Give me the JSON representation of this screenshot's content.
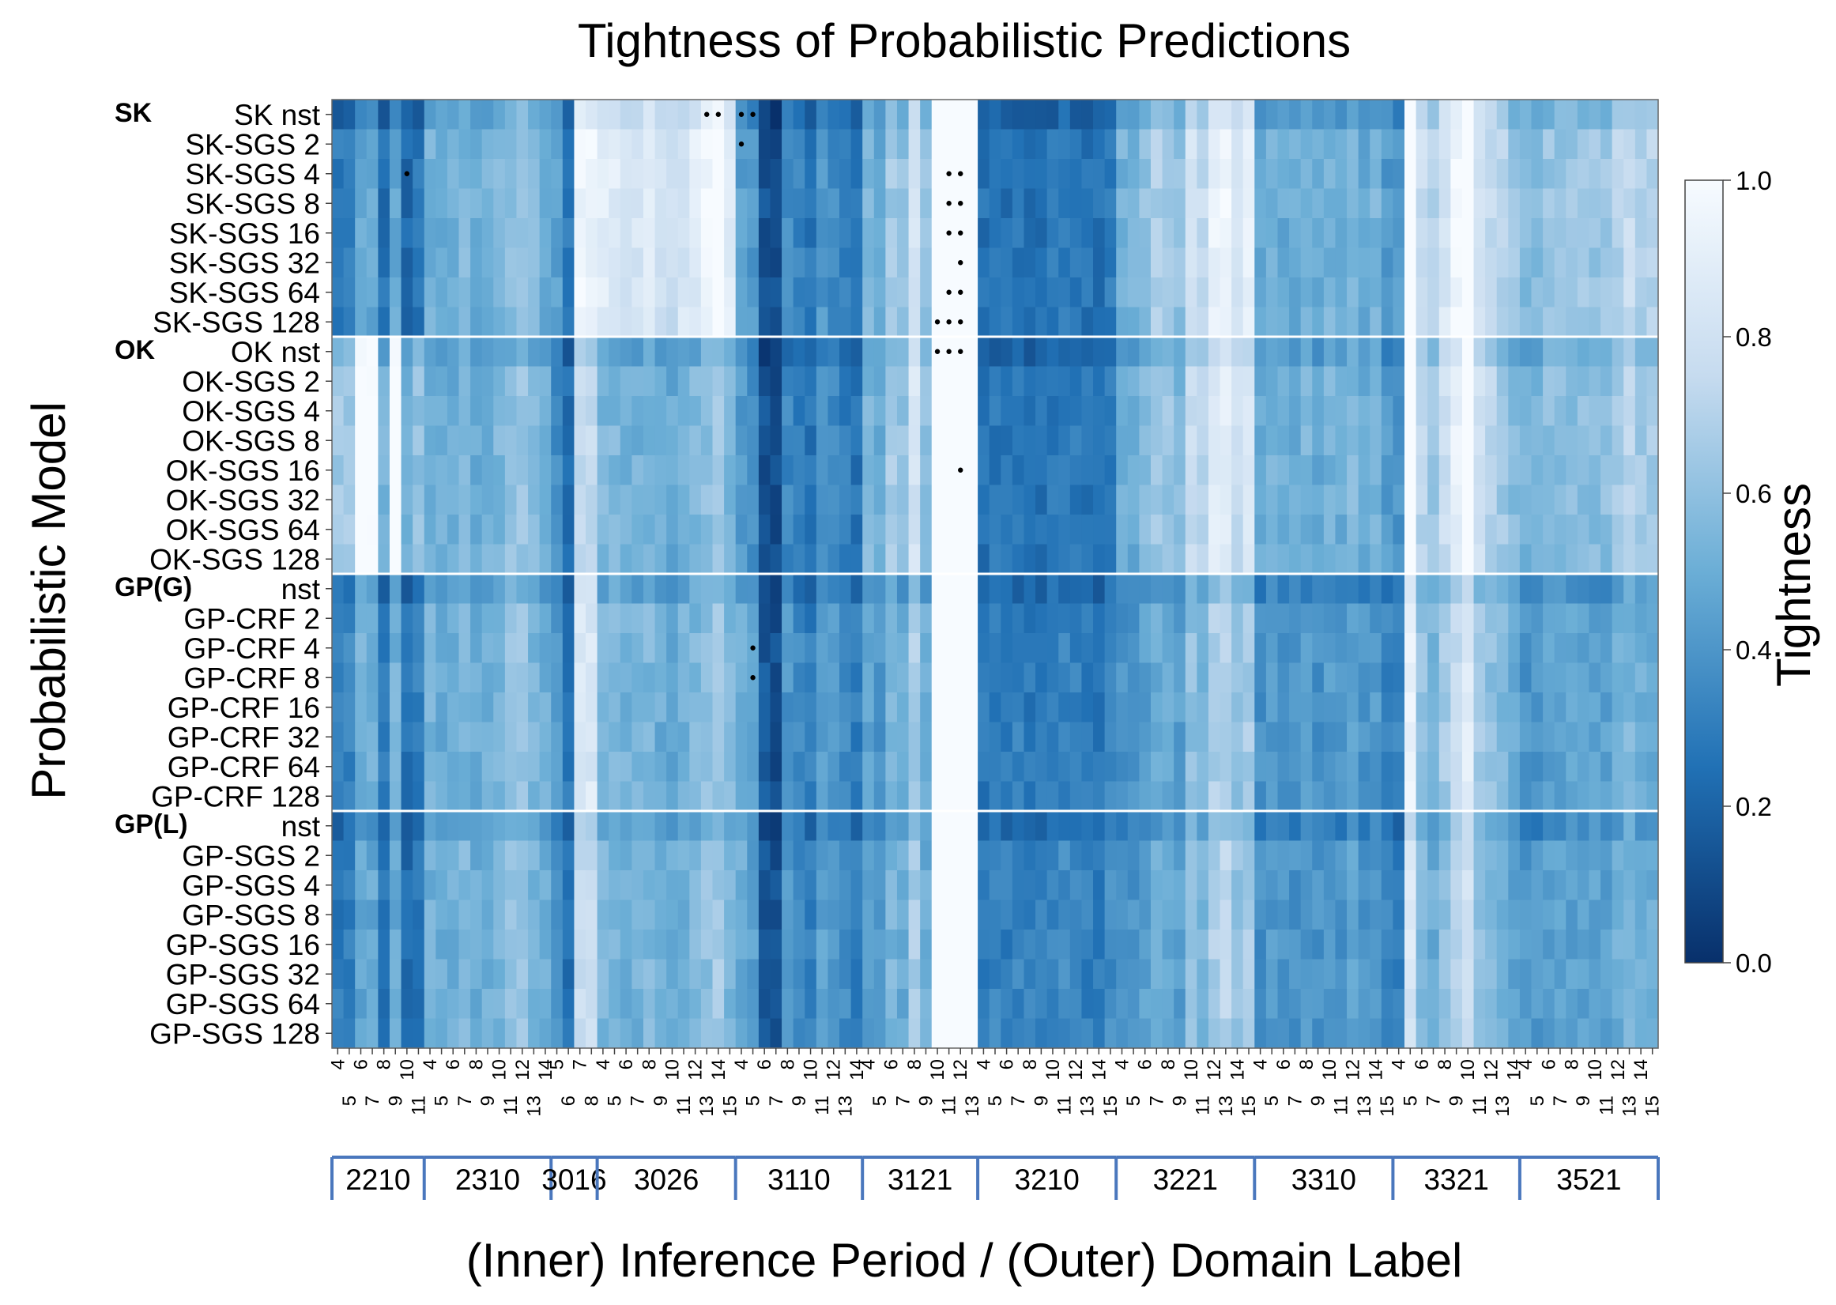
{
  "chart_data": {
    "type": "heatmap",
    "title": "Tightness of Probabilistic Predictions",
    "ylabel": "Probabilistic Model",
    "xlabel": "(Inner) Inference Period / (Outer) Domain Label",
    "colorbar": {
      "label": "Tightness",
      "range": [
        0.0,
        1.0
      ],
      "ticks": [
        "0.0",
        "0.2",
        "0.4",
        "0.6",
        "0.8",
        "1.0"
      ],
      "colors": [
        "#08306b",
        "#2171b5",
        "#6baed6",
        "#c6dbef",
        "#f7fbff"
      ]
    },
    "row_groups": [
      {
        "name": "SK",
        "rows": [
          "SK nst",
          "SK-SGS 2",
          "SK-SGS 4",
          "SK-SGS 8",
          "SK-SGS 16",
          "SK-SGS 32",
          "SK-SGS 64",
          "SK-SGS 128"
        ]
      },
      {
        "name": "OK",
        "rows": [
          "OK nst",
          "OK-SGS 2",
          "OK-SGS 4",
          "OK-SGS 8",
          "OK-SGS 16",
          "OK-SGS 32",
          "OK-SGS 64",
          "OK-SGS 128"
        ]
      },
      {
        "name": "GP(G)",
        "rows": [
          "nst",
          "GP-CRF 2",
          "GP-CRF 4",
          "GP-CRF 8",
          "GP-CRF 16",
          "GP-CRF 32",
          "GP-CRF 64",
          "GP-CRF 128"
        ]
      },
      {
        "name": "GP(L)",
        "rows": [
          "nst",
          "GP-SGS 2",
          "GP-SGS 4",
          "GP-SGS 8",
          "GP-SGS 16",
          "GP-SGS 32",
          "GP-SGS 64",
          "GP-SGS 128"
        ]
      }
    ],
    "domains": [
      {
        "label": "2210",
        "periods": [
          "4",
          "5",
          "6",
          "7",
          "8",
          "9",
          "10",
          "11"
        ]
      },
      {
        "label": "2310",
        "periods": [
          "4",
          "5",
          "6",
          "7",
          "8",
          "9",
          "10",
          "11",
          "12",
          "13",
          "14"
        ]
      },
      {
        "label": "3016",
        "periods": [
          "5",
          "6",
          "7",
          "8"
        ]
      },
      {
        "label": "3026",
        "periods": [
          "4",
          "5",
          "6",
          "7",
          "8",
          "9",
          "10",
          "11",
          "12",
          "13",
          "14",
          "15"
        ]
      },
      {
        "label": "3110",
        "periods": [
          "4",
          "5",
          "6",
          "7",
          "8",
          "9",
          "10",
          "11",
          "12",
          "13",
          "14"
        ]
      },
      {
        "label": "3121",
        "periods": [
          "4",
          "5",
          "6",
          "7",
          "8",
          "9",
          "10",
          "11",
          "12",
          "13"
        ]
      },
      {
        "label": "3210",
        "periods": [
          "4",
          "5",
          "6",
          "7",
          "8",
          "9",
          "10",
          "11",
          "12",
          "13",
          "14",
          "15"
        ]
      },
      {
        "label": "3221",
        "periods": [
          "4",
          "5",
          "6",
          "7",
          "8",
          "9",
          "10",
          "11",
          "12",
          "13",
          "14",
          "15"
        ]
      },
      {
        "label": "3310",
        "periods": [
          "4",
          "5",
          "6",
          "7",
          "8",
          "9",
          "10",
          "11",
          "12",
          "13",
          "14",
          "15"
        ]
      },
      {
        "label": "3321",
        "periods": [
          "4",
          "5",
          "6",
          "7",
          "8",
          "9",
          "10",
          "11",
          "12",
          "13",
          "14"
        ]
      },
      {
        "label": "3521",
        "periods": [
          "4",
          "5",
          "6",
          "7",
          "8",
          "9",
          "10",
          "11",
          "12",
          "13",
          "14",
          "15"
        ]
      }
    ],
    "column_bands": [
      {
        "cols": [
          0,
          7
        ],
        "profile": [
          0.58,
          0.6,
          0.95,
          0.95,
          0.5,
          0.95,
          0.45,
          0.55
        ],
        "rows": [
          0.5,
          1.1,
          0.55,
          0.5
        ]
      },
      {
        "cols": [
          8,
          18
        ],
        "profile": [
          0.52,
          0.5,
          0.5,
          0.55,
          0.5,
          0.52,
          0.55,
          0.6,
          0.62,
          0.55,
          0.5
        ],
        "rows": [
          1.0,
          1.0,
          1.0,
          1.0
        ]
      },
      {
        "cols": [
          19,
          22
        ],
        "profile": [
          0.45,
          0.3,
          0.95,
          0.95
        ],
        "rows": [
          1.0,
          0.8,
          0.9,
          0.8
        ]
      },
      {
        "cols": [
          23,
          34
        ],
        "profile": [
          0.55,
          0.55,
          0.52,
          0.52,
          0.55,
          0.5,
          0.48,
          0.52,
          0.55,
          0.6,
          0.65,
          0.55
        ],
        "rows": [
          1.6,
          1.0,
          1.0,
          1.0
        ]
      },
      {
        "cols": [
          35,
          45
        ],
        "profile": [
          0.5,
          0.45,
          0.15,
          0.12,
          0.4,
          0.35,
          0.3,
          0.45,
          0.4,
          0.35,
          0.3
        ],
        "rows": [
          0.9,
          0.85,
          1.0,
          1.0
        ]
      },
      {
        "cols": [
          46,
          55
        ],
        "profile": [
          0.5,
          0.45,
          0.6,
          0.55,
          0.75,
          0.55,
          0.65,
          0.6,
          0.95,
          0.95
        ],
        "rows": [
          1.1,
          1.1,
          0.9,
          0.9
        ]
      },
      {
        "cols": [
          56,
          67
        ],
        "profile": [
          0.25,
          0.28,
          0.25,
          0.28,
          0.26,
          0.25,
          0.28,
          0.3,
          0.28,
          0.26,
          0.25,
          0.3
        ],
        "rows": [
          1.0,
          1.0,
          1.1,
          1.2
        ]
      },
      {
        "cols": [
          68,
          79
        ],
        "profile": [
          0.35,
          0.35,
          0.4,
          0.45,
          0.45,
          0.4,
          0.55,
          0.5,
          0.62,
          0.65,
          0.55,
          0.6
        ],
        "rows": [
          1.5,
          1.4,
          1.1,
          1.1
        ]
      },
      {
        "cols": [
          80,
          91
        ],
        "profile": [
          0.35,
          0.38,
          0.35,
          0.35,
          0.38,
          0.35,
          0.38,
          0.35,
          0.4,
          0.35,
          0.38,
          0.3
        ],
        "rows": [
          1.4,
          1.4,
          1.1,
          1.1
        ]
      },
      {
        "cols": [
          92,
          102
        ],
        "profile": [
          0.3,
          0.85,
          0.55,
          0.5,
          0.6,
          0.7,
          0.8,
          0.6,
          0.55,
          0.5,
          0.45
        ],
        "rows": [
          1.4,
          1.3,
          1.1,
          1.0
        ]
      },
      {
        "cols": [
          103,
          114
        ],
        "profile": [
          0.4,
          0.4,
          0.45,
          0.45,
          0.45,
          0.45,
          0.45,
          0.45,
          0.5,
          0.55,
          0.5,
          0.5
        ],
        "rows": [
          1.4,
          1.3,
          1.0,
          1.0
        ]
      }
    ],
    "white_columns": [
      52,
      53,
      54,
      55
    ],
    "dot_markers": [
      {
        "row": 0,
        "cols": [
          32,
          33
        ]
      },
      {
        "row": 0,
        "cols": [
          35,
          36
        ]
      },
      {
        "row": 1,
        "cols": [
          35
        ]
      },
      {
        "row": 2,
        "cols": [
          6
        ]
      },
      {
        "row": 2,
        "cols": [
          53,
          54
        ]
      },
      {
        "row": 3,
        "cols": [
          53,
          54
        ]
      },
      {
        "row": 4,
        "cols": [
          53,
          54
        ]
      },
      {
        "row": 5,
        "cols": [
          54
        ]
      },
      {
        "row": 6,
        "cols": [
          53,
          54
        ]
      },
      {
        "row": 7,
        "cols": [
          52,
          53,
          54
        ]
      },
      {
        "row": 8,
        "cols": [
          52,
          53,
          54
        ]
      },
      {
        "row": 12,
        "cols": [
          54
        ]
      },
      {
        "row": 18,
        "cols": [
          36
        ]
      },
      {
        "row": 19,
        "cols": [
          36
        ]
      }
    ]
  }
}
